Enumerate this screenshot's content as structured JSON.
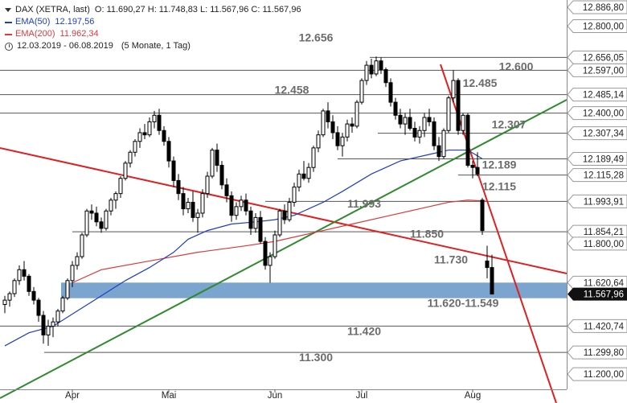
{
  "legend": {
    "symbol": "DAX (XETRA, last)",
    "ohlc": "O: 11.690,27  H: 11.748,83  L: 11.567,96  C: 11.567,96",
    "ema50_label": "EMA(50)",
    "ema50_value": "12.197,56",
    "ema50_color": "#1f3fbf",
    "ema200_label": "EMA(200)",
    "ema200_value": "11.962,34",
    "ema200_color": "#d93a3a",
    "date_range": "12.03.2019 - 06.08.2019",
    "period": "(5 Monate, 1 Tag)"
  },
  "chart_data": {
    "type": "candlestick",
    "ylim": [
      11130,
      12920
    ],
    "y_ticks": [
      {
        "v": 12886.8,
        "label": "12.886,80"
      },
      {
        "v": 12800,
        "label": "12.800,00"
      },
      {
        "v": 12656.05,
        "label": "12.656,05"
      },
      {
        "v": 12597.0,
        "label": "12.597,00"
      },
      {
        "v": 12485.14,
        "label": "12.485,14"
      },
      {
        "v": 12400,
        "label": "12.400,00"
      },
      {
        "v": 12307.34,
        "label": "12.307,34"
      },
      {
        "v": 12189.49,
        "label": "12.189,49"
      },
      {
        "v": 12115.28,
        "label": "12.115,28"
      },
      {
        "v": 11993.91,
        "label": "11.993,91"
      },
      {
        "v": 11854.21,
        "label": "11.854,21"
      },
      {
        "v": 11800,
        "label": "11.800,00"
      },
      {
        "v": 11620.64,
        "label": "11.620,64"
      },
      {
        "v": 11567.96,
        "label": "11.567,96",
        "current": true
      },
      {
        "v": 11420.74,
        "label": "11.420,74"
      },
      {
        "v": 11299.8,
        "label": "11.299,80"
      },
      {
        "v": 11200,
        "label": "11.200,00"
      }
    ],
    "x_ticks": [
      {
        "i": 14,
        "label": "Apr"
      },
      {
        "i": 34,
        "label": "Mai"
      },
      {
        "i": 56,
        "label": "Jun"
      },
      {
        "i": 74,
        "label": "Jul"
      },
      {
        "i": 97,
        "label": "Aug"
      }
    ],
    "candles": [
      [
        11520,
        11560,
        11480,
        11540
      ],
      [
        11540,
        11580,
        11510,
        11570
      ],
      [
        11570,
        11640,
        11555,
        11630
      ],
      [
        11630,
        11700,
        11610,
        11680
      ],
      [
        11680,
        11720,
        11630,
        11650
      ],
      [
        11650,
        11660,
        11560,
        11580
      ],
      [
        11580,
        11600,
        11520,
        11540
      ],
      [
        11540,
        11550,
        11440,
        11470
      ],
      [
        11470,
        11490,
        11340,
        11380
      ],
      [
        11380,
        11450,
        11330,
        11420
      ],
      [
        11420,
        11460,
        11370,
        11440
      ],
      [
        11440,
        11500,
        11420,
        11490
      ],
      [
        11490,
        11560,
        11480,
        11550
      ],
      [
        11550,
        11640,
        11540,
        11630
      ],
      [
        11630,
        11720,
        11600,
        11700
      ],
      [
        11700,
        11760,
        11680,
        11740
      ],
      [
        11740,
        11850,
        11730,
        11840
      ],
      [
        11840,
        11960,
        11830,
        11950
      ],
      [
        11950,
        11980,
        11910,
        11940
      ],
      [
        11940,
        11970,
        11880,
        11900
      ],
      [
        11900,
        11920,
        11850,
        11870
      ],
      [
        11870,
        11960,
        11860,
        11950
      ],
      [
        11950,
        12010,
        11930,
        12000
      ],
      [
        12000,
        12040,
        11960,
        12030
      ],
      [
        12030,
        12110,
        12010,
        12100
      ],
      [
        12100,
        12180,
        12090,
        12170
      ],
      [
        12170,
        12230,
        12150,
        12220
      ],
      [
        12220,
        12280,
        12200,
        12270
      ],
      [
        12270,
        12330,
        12240,
        12310
      ],
      [
        12310,
        12350,
        12280,
        12300
      ],
      [
        12300,
        12380,
        12290,
        12360
      ],
      [
        12360,
        12410,
        12330,
        12390
      ],
      [
        12390,
        12420,
        12300,
        12320
      ],
      [
        12320,
        12340,
        12250,
        12270
      ],
      [
        12270,
        12290,
        12150,
        12180
      ],
      [
        12180,
        12200,
        12060,
        12090
      ],
      [
        12090,
        12120,
        12000,
        12030
      ],
      [
        12030,
        12060,
        11930,
        11960
      ],
      [
        11960,
        12010,
        11940,
        11990
      ],
      [
        11990,
        12040,
        11900,
        11920
      ],
      [
        11920,
        11960,
        11850,
        11940
      ],
      [
        11940,
        12050,
        11920,
        12030
      ],
      [
        12030,
        12130,
        12010,
        12110
      ],
      [
        12110,
        12240,
        12100,
        12230
      ],
      [
        12230,
        12260,
        12130,
        12160
      ],
      [
        12160,
        12180,
        12050,
        12070
      ],
      [
        12070,
        12100,
        11990,
        12020
      ],
      [
        12020,
        12040,
        11900,
        11930
      ],
      [
        11930,
        11990,
        11910,
        11970
      ],
      [
        11970,
        12020,
        11950,
        12000
      ],
      [
        12000,
        12030,
        11930,
        11950
      ],
      [
        11950,
        11970,
        11840,
        11870
      ],
      [
        11870,
        11940,
        11850,
        11920
      ],
      [
        11920,
        11950,
        11800,
        11810
      ],
      [
        11810,
        11830,
        11680,
        11700
      ],
      [
        11700,
        11760,
        11620,
        11740
      ],
      [
        11740,
        11860,
        11730,
        11840
      ],
      [
        11840,
        11960,
        11830,
        11950
      ],
      [
        11950,
        11980,
        11890,
        11910
      ],
      [
        11910,
        12010,
        11900,
        11990
      ],
      [
        11990,
        12080,
        11970,
        12060
      ],
      [
        12060,
        12140,
        12040,
        12120
      ],
      [
        12120,
        12180,
        12090,
        12100
      ],
      [
        12100,
        12170,
        12080,
        12150
      ],
      [
        12150,
        12250,
        12130,
        12240
      ],
      [
        12240,
        12320,
        12220,
        12300
      ],
      [
        12300,
        12420,
        12290,
        12410
      ],
      [
        12410,
        12450,
        12330,
        12360
      ],
      [
        12360,
        12390,
        12280,
        12310
      ],
      [
        12310,
        12340,
        12230,
        12250
      ],
      [
        12250,
        12310,
        12200,
        12290
      ],
      [
        12290,
        12370,
        12270,
        12350
      ],
      [
        12350,
        12380,
        12310,
        12340
      ],
      [
        12340,
        12460,
        12330,
        12450
      ],
      [
        12450,
        12560,
        12440,
        12550
      ],
      [
        12550,
        12640,
        12530,
        12620
      ],
      [
        12620,
        12650,
        12560,
        12580
      ],
      [
        12580,
        12660,
        12570,
        12640
      ],
      [
        12640,
        12656,
        12580,
        12600
      ],
      [
        12600,
        12610,
        12520,
        12540
      ],
      [
        12540,
        12560,
        12430,
        12450
      ],
      [
        12450,
        12470,
        12370,
        12390
      ],
      [
        12390,
        12420,
        12330,
        12350
      ],
      [
        12350,
        12400,
        12300,
        12380
      ],
      [
        12380,
        12420,
        12320,
        12330
      ],
      [
        12330,
        12360,
        12270,
        12290
      ],
      [
        12290,
        12340,
        12260,
        12320
      ],
      [
        12320,
        12400,
        12290,
        12380
      ],
      [
        12380,
        12420,
        12340,
        12360
      ],
      [
        12360,
        12380,
        12230,
        12250
      ],
      [
        12250,
        12290,
        12180,
        12200
      ],
      [
        12200,
        12330,
        12190,
        12320
      ],
      [
        12320,
        12480,
        12310,
        12470
      ],
      [
        12470,
        12597,
        12450,
        12550
      ],
      [
        12550,
        12560,
        12300,
        12320
      ],
      [
        12320,
        12400,
        12300,
        12390
      ],
      [
        12390,
        12400,
        12150,
        12160
      ],
      [
        12160,
        12180,
        12100,
        12150
      ],
      [
        12150,
        12220,
        12110,
        12120
      ],
      [
        12000,
        12010,
        11840,
        11860
      ],
      [
        11720,
        11790,
        11640,
        11690
      ],
      [
        11690,
        11748.83,
        11567.96,
        11567.96
      ]
    ],
    "ema50": [
      [
        0,
        11330
      ],
      [
        5,
        11390
      ],
      [
        10,
        11420
      ],
      [
        15,
        11490
      ],
      [
        20,
        11560
      ],
      [
        25,
        11630
      ],
      [
        30,
        11690
      ],
      [
        35,
        11760
      ],
      [
        38,
        11820
      ],
      [
        42,
        11860
      ],
      [
        47,
        11890
      ],
      [
        52,
        11900
      ],
      [
        56,
        11910
      ],
      [
        60,
        11930
      ],
      [
        66,
        11990
      ],
      [
        70,
        12040
      ],
      [
        76,
        12120
      ],
      [
        82,
        12180
      ],
      [
        88,
        12210
      ],
      [
        92,
        12230
      ],
      [
        96,
        12230
      ],
      [
        99,
        12190
      ]
    ],
    "ema200": [
      [
        14,
        11620
      ],
      [
        20,
        11680
      ],
      [
        30,
        11720
      ],
      [
        40,
        11760
      ],
      [
        50,
        11790
      ],
      [
        56,
        11810
      ],
      [
        64,
        11850
      ],
      [
        72,
        11890
      ],
      [
        80,
        11930
      ],
      [
        86,
        11960
      ],
      [
        92,
        11990
      ],
      [
        96,
        12000
      ],
      [
        100,
        11995
      ]
    ],
    "annotations": [
      {
        "text": "12.656",
        "i": 64.5,
        "v": 12730
      },
      {
        "text": "12.600",
        "i": 106,
        "v": 12597
      },
      {
        "text": "12.458",
        "i": 59.5,
        "v": 12490
      },
      {
        "text": "12.485",
        "i": 98.5,
        "v": 12520
      },
      {
        "text": "12.307",
        "i": 104.5,
        "v": 12330
      },
      {
        "text": "12.189",
        "i": 102.5,
        "v": 12145
      },
      {
        "text": "12.115",
        "i": 102.5,
        "v": 12045
      },
      {
        "text": "11.993",
        "i": 74.5,
        "v": 11965
      },
      {
        "text": "11.850",
        "i": 87.5,
        "v": 11827
      },
      {
        "text": "11.730",
        "i": 92.5,
        "v": 11708
      },
      {
        "text": "11.620-11.549",
        "i": 95,
        "v": 11510
      },
      {
        "text": "11.420",
        "i": 74.5,
        "v": 11380
      },
      {
        "text": "11.300",
        "i": 64.5,
        "v": 11260
      }
    ]
  }
}
